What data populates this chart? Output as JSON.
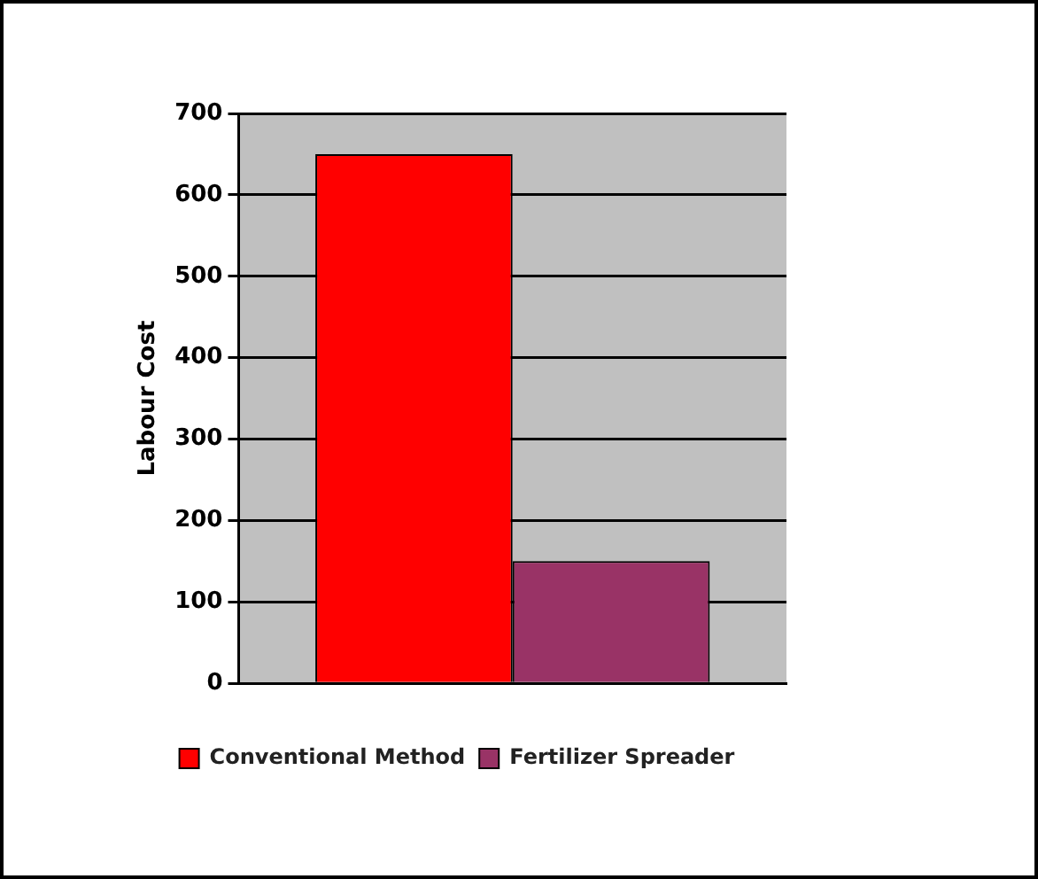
{
  "chart_data": {
    "type": "bar",
    "ylabel": "Labour Cost",
    "categories": [
      null
    ],
    "series": [
      {
        "name": "Conventional Method",
        "color": "#ff0000",
        "values": [
          650
        ]
      },
      {
        "name": "Fertilizer Spreader",
        "color": "#993366",
        "values": [
          150
        ]
      }
    ],
    "ylim": [
      0,
      700
    ],
    "yticks": [
      0,
      100,
      200,
      300,
      400,
      500,
      600,
      700
    ],
    "grid": "y",
    "legend": "bottom"
  }
}
